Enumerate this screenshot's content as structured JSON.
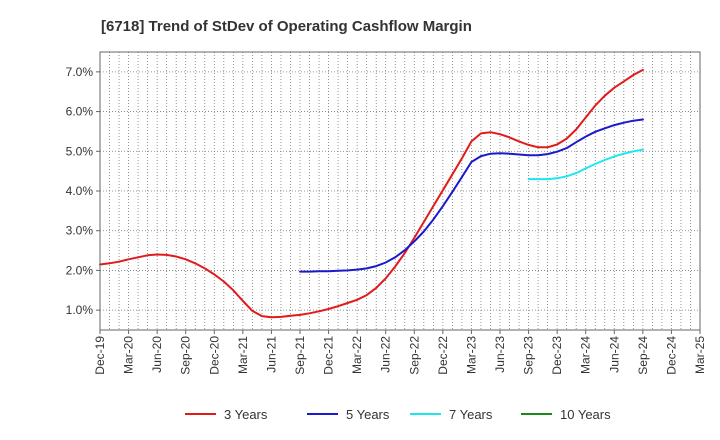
{
  "chart_data": {
    "type": "line",
    "title": "[6718]  Trend of StDev of Operating Cashflow Margin",
    "xlabel": "",
    "ylabel": "",
    "ylim": [
      0.005,
      0.075
    ],
    "yticks": [
      "1.0%",
      "2.0%",
      "3.0%",
      "4.0%",
      "5.0%",
      "6.0%",
      "7.0%"
    ],
    "ytick_values": [
      0.01,
      0.02,
      0.03,
      0.04,
      0.05,
      0.06,
      0.07
    ],
    "x_tick_labels": [
      "Dec-19",
      "Mar-20",
      "Jun-20",
      "Sep-20",
      "Dec-20",
      "Mar-21",
      "Jun-21",
      "Sep-21",
      "Dec-21",
      "Mar-22",
      "Jun-22",
      "Sep-22",
      "Dec-22",
      "Mar-23",
      "Jun-23",
      "Sep-23",
      "Dec-23",
      "Mar-24",
      "Jun-24",
      "Sep-24",
      "Dec-24",
      "Mar-25"
    ],
    "grid": true,
    "legend_position": "bottom",
    "series": [
      {
        "name": "3 Years",
        "color": "#e31a1c",
        "x": [
          "Dec-19",
          "Jan-20",
          "Feb-20",
          "Mar-20",
          "Apr-20",
          "May-20",
          "Jun-20",
          "Jul-20",
          "Aug-20",
          "Sep-20",
          "Oct-20",
          "Nov-20",
          "Dec-20",
          "Jan-21",
          "Feb-21",
          "Mar-21",
          "Apr-21",
          "May-21",
          "Jun-21",
          "Jul-21",
          "Aug-21",
          "Sep-21",
          "Oct-21",
          "Nov-21",
          "Dec-21",
          "Jan-22",
          "Feb-22",
          "Mar-22",
          "Apr-22",
          "May-22",
          "Jun-22",
          "Jul-22",
          "Aug-22",
          "Sep-22",
          "Oct-22",
          "Nov-22",
          "Dec-22",
          "Jan-23",
          "Feb-23",
          "Mar-23",
          "Apr-23",
          "May-23",
          "Jun-23",
          "Jul-23",
          "Aug-23",
          "Sep-23",
          "Oct-23",
          "Nov-23",
          "Dec-23",
          "Jan-24",
          "Feb-24",
          "Mar-24",
          "Apr-24",
          "May-24",
          "Jun-24",
          "Jul-24",
          "Aug-24",
          "Sep-24"
        ],
        "values": [
          0.0215,
          0.0218,
          0.0222,
          0.0228,
          0.0233,
          0.0238,
          0.024,
          0.0239,
          0.0235,
          0.0228,
          0.0218,
          0.0205,
          0.019,
          0.0172,
          0.015,
          0.0123,
          0.0098,
          0.0085,
          0.0082,
          0.0083,
          0.0086,
          0.0088,
          0.0092,
          0.0097,
          0.0103,
          0.011,
          0.0118,
          0.0126,
          0.0138,
          0.0156,
          0.018,
          0.021,
          0.0244,
          0.0282,
          0.0322,
          0.0362,
          0.0402,
          0.0442,
          0.0482,
          0.0525,
          0.0545,
          0.0548,
          0.0543,
          0.0535,
          0.0525,
          0.0516,
          0.051,
          0.051,
          0.0517,
          0.0532,
          0.0555,
          0.0585,
          0.0615,
          0.064,
          0.066,
          0.0676,
          0.0692,
          0.0705
        ]
      },
      {
        "name": "5 Years",
        "color": "#1a1acc",
        "x": [
          "Sep-21",
          "Oct-21",
          "Nov-21",
          "Dec-21",
          "Jan-22",
          "Feb-22",
          "Mar-22",
          "Apr-22",
          "May-22",
          "Jun-22",
          "Jul-22",
          "Aug-22",
          "Sep-22",
          "Oct-22",
          "Nov-22",
          "Dec-22",
          "Jan-23",
          "Feb-23",
          "Mar-23",
          "Apr-23",
          "May-23",
          "Jun-23",
          "Jul-23",
          "Aug-23",
          "Sep-23",
          "Oct-23",
          "Nov-23",
          "Dec-23",
          "Jan-24",
          "Feb-24",
          "Mar-24",
          "Apr-24",
          "May-24",
          "Jun-24",
          "Jul-24",
          "Aug-24",
          "Sep-24"
        ],
        "values": [
          0.0197,
          0.0197,
          0.0198,
          0.0198,
          0.0199,
          0.02,
          0.0202,
          0.0205,
          0.0211,
          0.022,
          0.0233,
          0.0251,
          0.0273,
          0.0298,
          0.0328,
          0.0362,
          0.0398,
          0.0435,
          0.0473,
          0.0488,
          0.0494,
          0.0495,
          0.0494,
          0.0492,
          0.049,
          0.049,
          0.0493,
          0.0499,
          0.0508,
          0.0523,
          0.0537,
          0.0549,
          0.0558,
          0.0566,
          0.0572,
          0.0577,
          0.058
        ]
      },
      {
        "name": "7 Years",
        "color": "#1ae8ee",
        "x": [
          "Sep-23",
          "Oct-23",
          "Nov-23",
          "Dec-23",
          "Jan-24",
          "Feb-24",
          "Mar-24",
          "Apr-24",
          "May-24",
          "Jun-24",
          "Jul-24",
          "Aug-24",
          "Sep-24"
        ],
        "values": [
          0.043,
          0.043,
          0.043,
          0.0432,
          0.0437,
          0.0445,
          0.0457,
          0.0468,
          0.0478,
          0.0487,
          0.0494,
          0.05,
          0.0504
        ]
      },
      {
        "name": "10 Years",
        "color": "#1a8a1a",
        "x": [],
        "values": []
      }
    ]
  }
}
